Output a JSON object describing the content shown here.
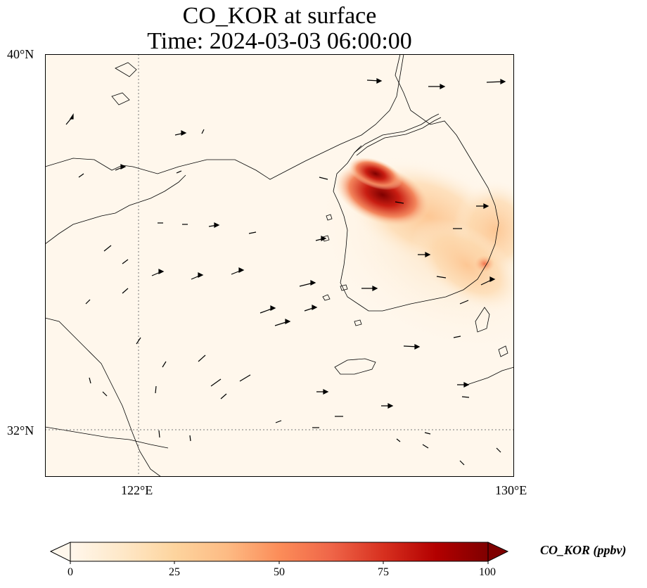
{
  "title": {
    "line1": "CO_KOR at surface",
    "line2": "Time: 2024-03-03 06:00:00"
  },
  "axes": {
    "lat_ticks": [
      "40°N",
      "32°N"
    ],
    "lon_ticks": [
      "122°E",
      "130°E"
    ],
    "lon_range": [
      120,
      130
    ],
    "lat_range": [
      31,
      40
    ]
  },
  "colorbar": {
    "label": "CO_KOR (ppbv)",
    "ticks": [
      "0",
      "25",
      "50",
      "75",
      "100"
    ],
    "range": [
      0,
      100
    ],
    "colormap": "OrRd",
    "extend": "both"
  },
  "colors": {
    "low": "#fff7ec",
    "mid": "#fdbb84",
    "high": "#7f0000"
  },
  "chart_data": {
    "type": "heatmap",
    "variable": "CO_KOR",
    "units": "ppbv",
    "max_region": "Seoul metropolitan area",
    "wind_vectors": "westerly/northwesterly flow over Yellow Sea"
  }
}
